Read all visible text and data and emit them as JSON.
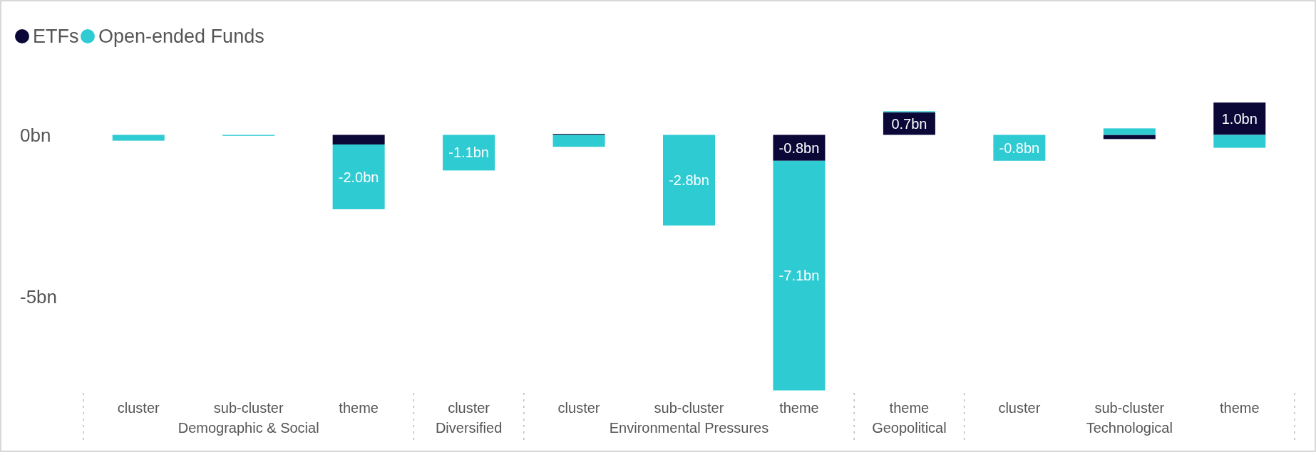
{
  "chart_data": {
    "type": "bar",
    "stacked": true,
    "categories": [
      "cluster",
      "sub-cluster",
      "theme",
      "cluster",
      "cluster",
      "sub-cluster",
      "theme",
      "theme",
      "cluster",
      "sub-cluster",
      "theme"
    ],
    "annotations": [
      "Demographic & Social",
      "Diversified",
      "Environmental Pressures",
      "Geopolitical",
      "Technological"
    ],
    "series": [
      {
        "name": "ETFs",
        "color": "#0b0838",
        "values": [
          null,
          null,
          -0.3,
          null,
          0.03,
          null,
          -0.8,
          0.7,
          null,
          -0.13,
          1.0
        ],
        "value_labels": [
          null,
          null,
          null,
          null,
          null,
          null,
          "-0.8bn",
          "0.7bn",
          null,
          null,
          "1.0bn"
        ]
      },
      {
        "name": "Open-ended Funds",
        "color": "#2ecbd3",
        "values": [
          -0.18,
          -0.03,
          -2.0,
          -1.1,
          -0.37,
          -2.8,
          -7.1,
          0.03,
          -0.8,
          0.2,
          -0.4
        ],
        "value_labels": [
          null,
          null,
          "-2.0bn",
          "-1.1bn",
          null,
          "-2.8bn",
          "-7.1bn",
          null,
          "-0.8bn",
          null,
          null
        ]
      }
    ],
    "ylim": [
      -7.9,
      1.0
    ],
    "yticks": [
      {
        "value": 0,
        "label": "0bn"
      },
      {
        "value": -5,
        "label": "-5bn"
      }
    ],
    "grid": false,
    "legend": "top left"
  }
}
